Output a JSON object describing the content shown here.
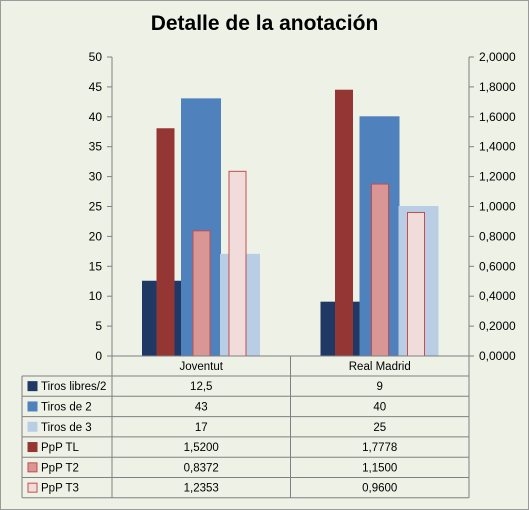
{
  "chart_data": {
    "type": "bar",
    "title": "Detalle de la anotación",
    "categories": [
      "Joventut",
      "Real Madrid"
    ],
    "y_left": {
      "ylim": [
        0,
        50
      ],
      "ticks": [
        "0",
        "5",
        "10",
        "15",
        "20",
        "25",
        "30",
        "35",
        "40",
        "45",
        "50"
      ]
    },
    "y_right": {
      "ylim": [
        0,
        2
      ],
      "ticks": [
        "0,0000",
        "0,2000",
        "0,4000",
        "0,6000",
        "0,8000",
        "1,0000",
        "1,2000",
        "1,4000",
        "1,6000",
        "1,8000",
        "2,0000"
      ]
    },
    "series": [
      {
        "name": "Tiros libres/2",
        "axis": "left",
        "values": [
          12.5,
          9
        ],
        "labels": [
          "12,5",
          "9"
        ],
        "color": "#1f3864",
        "fill": "#1f3864",
        "stroke": "#1f3864"
      },
      {
        "name": "Tiros de 2",
        "axis": "left",
        "values": [
          43,
          40
        ],
        "labels": [
          "43",
          "40"
        ],
        "color": "#4f81bd",
        "fill": "#4f81bd",
        "stroke": "#4f81bd"
      },
      {
        "name": "Tiros de 3",
        "axis": "left",
        "values": [
          17,
          25
        ],
        "labels": [
          "17",
          "25"
        ],
        "color": "#b9cde5",
        "fill": "#b9cde5",
        "stroke": "#b9cde5"
      },
      {
        "name": "PpP TL",
        "axis": "right",
        "values": [
          1.52,
          1.7778
        ],
        "labels": [
          "1,5200",
          "1,7778"
        ],
        "color": "#943634",
        "fill": "#943634",
        "stroke": "#943634"
      },
      {
        "name": "PpP T2",
        "axis": "right",
        "values": [
          0.8372,
          1.15
        ],
        "labels": [
          "0,8372",
          "1,1500"
        ],
        "color": "#da9694",
        "fill": "#da9694",
        "stroke": "#c0504d"
      },
      {
        "name": "PpP T3",
        "axis": "right",
        "values": [
          1.2353,
          0.96
        ],
        "labels": [
          "1,2353",
          "0,9600"
        ],
        "color": "#f2dcdb",
        "fill": "#f2dcdb",
        "stroke": "#c0504d"
      }
    ],
    "legend": "data-table-left",
    "grid": false
  }
}
